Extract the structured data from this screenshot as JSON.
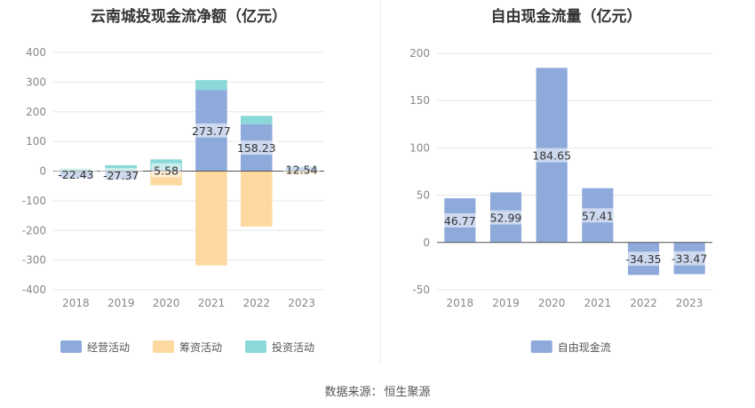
{
  "chart_data": [
    {
      "type": "bar",
      "title": "云南城投现金流净额（亿元）",
      "categories": [
        "2018",
        "2019",
        "2020",
        "2021",
        "2022",
        "2023"
      ],
      "ylim": [
        -400,
        400
      ],
      "yticks": [
        400,
        300,
        200,
        100,
        0,
        -100,
        -200,
        -300,
        -400
      ],
      "stacked": true,
      "grid": true,
      "legend_position": "bottom",
      "series": [
        {
          "name": "经营活动",
          "color": "#8eaadb",
          "values": [
            -22.43,
            -27.37,
            5.58,
            273.77,
            158.23,
            12.54
          ]
        },
        {
          "name": "筹资活动",
          "color": "#fdd9a0",
          "values": [
            2,
            2,
            -48,
            -318,
            -187,
            -10
          ]
        },
        {
          "name": "投资活动",
          "color": "#8ad8d8",
          "values": [
            6,
            18,
            34,
            33,
            28,
            3
          ]
        }
      ],
      "data_labels": [
        "-22.43",
        "-27.37",
        "5.58",
        "273.77",
        "158.23",
        "12.54"
      ]
    },
    {
      "type": "bar",
      "title": "自由现金流量（亿元）",
      "categories": [
        "2018",
        "2019",
        "2020",
        "2021",
        "2022",
        "2023"
      ],
      "ylim": [
        -50,
        200
      ],
      "yticks": [
        200,
        150,
        100,
        50,
        0,
        -50
      ],
      "grid": true,
      "legend_position": "bottom",
      "series": [
        {
          "name": "自由现金流",
          "color": "#8eaadb",
          "values": [
            46.77,
            52.99,
            184.65,
            57.41,
            -34.35,
            -33.47
          ]
        }
      ],
      "data_labels": [
        "46.77",
        "52.99",
        "184.65",
        "57.41",
        "-34.35",
        "-33.47"
      ]
    }
  ],
  "footer": {
    "source_label": "数据来源：",
    "source_value": "恒生聚源"
  }
}
